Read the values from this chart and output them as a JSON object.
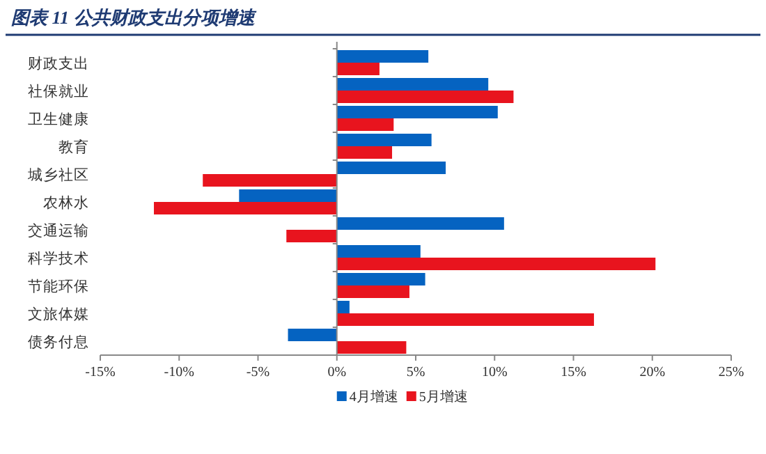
{
  "chart_data": {
    "type": "bar",
    "orientation": "horizontal",
    "title": "图表 11   公共财政支出分项增速",
    "categories": [
      "财政支出",
      "社保就业",
      "卫生健康",
      "教育",
      "城乡社区",
      "农林水",
      "交通运输",
      "科学技术",
      "节能环保",
      "文旅体媒",
      "债务付息"
    ],
    "series": [
      {
        "name": "4月增速",
        "color": "#0563c1",
        "values": [
          5.8,
          9.6,
          10.2,
          6.0,
          6.9,
          -6.2,
          10.6,
          5.3,
          5.6,
          0.8,
          -3.1
        ]
      },
      {
        "name": "5月增速",
        "color": "#e8141e",
        "values": [
          2.7,
          11.2,
          3.6,
          3.5,
          -8.5,
          -11.6,
          -3.2,
          20.2,
          4.6,
          16.3,
          4.4
        ]
      }
    ],
    "xlim": [
      -15,
      25
    ],
    "xticks": [
      {
        "value": -15,
        "label": "-15%"
      },
      {
        "value": -10,
        "label": "-10%"
      },
      {
        "value": -5,
        "label": "-5%"
      },
      {
        "value": 0,
        "label": "0%"
      },
      {
        "value": 5,
        "label": "5%"
      },
      {
        "value": 10,
        "label": "10%"
      },
      {
        "value": 15,
        "label": "15%"
      },
      {
        "value": 20,
        "label": "20%"
      },
      {
        "value": 25,
        "label": "25%"
      }
    ],
    "legend": "bottom"
  }
}
